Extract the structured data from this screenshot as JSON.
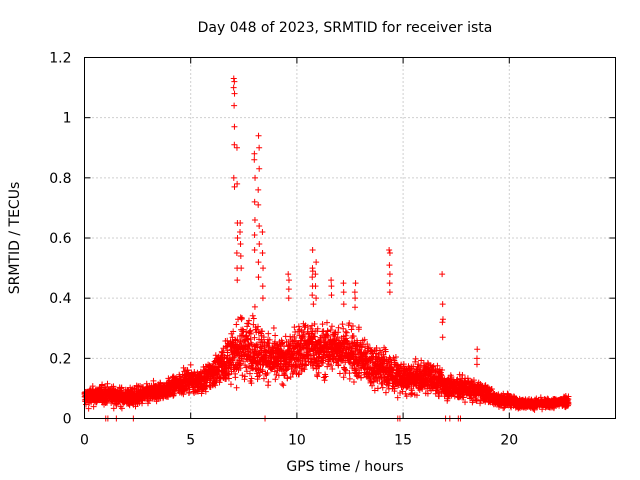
{
  "chart_data": {
    "type": "scatter",
    "title": "Day 048 of 2023, SRMTID for receiver ista",
    "xlabel": "GPS time / hours",
    "ylabel": "SRMTID / TECUs",
    "xlim": [
      0,
      25
    ],
    "ylim": [
      0,
      1.2
    ],
    "xticks": [
      0,
      5,
      10,
      15,
      20
    ],
    "xtick_labels": [
      "0",
      "5",
      "10",
      "15",
      "20"
    ],
    "yticks": [
      0,
      0.2,
      0.4,
      0.6,
      0.8,
      1,
      1.2
    ],
    "ytick_labels": [
      "0",
      "0.2",
      "0.4",
      "0.6",
      "0.8",
      "1",
      "1.2"
    ],
    "grid": true,
    "marker": "+",
    "series": [
      {
        "name": "SRMTID",
        "color": "#ff0000",
        "profile": {
          "x": [
            0,
            1,
            2,
            3,
            4,
            5,
            5.5,
            6,
            6.5,
            7,
            7.5,
            8,
            8.5,
            9,
            9.5,
            10,
            10.5,
            11,
            11.5,
            12,
            12.5,
            13,
            13.5,
            14,
            14.5,
            15,
            15.5,
            16,
            16.5,
            17,
            17.5,
            18,
            18.5,
            19,
            19.5,
            20,
            20.5,
            21,
            21.5,
            22,
            22.8
          ],
          "center": [
            0.07,
            0.08,
            0.07,
            0.08,
            0.1,
            0.13,
            0.12,
            0.15,
            0.18,
            0.21,
            0.24,
            0.23,
            0.21,
            0.19,
            0.2,
            0.22,
            0.24,
            0.22,
            0.23,
            0.24,
            0.22,
            0.2,
            0.18,
            0.17,
            0.15,
            0.13,
            0.13,
            0.14,
            0.13,
            0.11,
            0.1,
            0.1,
            0.09,
            0.08,
            0.06,
            0.06,
            0.05,
            0.05,
            0.05,
            0.05,
            0.06
          ],
          "spread": [
            0.03,
            0.03,
            0.03,
            0.03,
            0.03,
            0.035,
            0.04,
            0.05,
            0.06,
            0.08,
            0.1,
            0.1,
            0.08,
            0.07,
            0.07,
            0.08,
            0.09,
            0.08,
            0.08,
            0.08,
            0.08,
            0.07,
            0.07,
            0.07,
            0.06,
            0.05,
            0.05,
            0.05,
            0.05,
            0.04,
            0.04,
            0.04,
            0.03,
            0.03,
            0.02,
            0.02,
            0.015,
            0.015,
            0.015,
            0.015,
            0.02
          ]
        },
        "peaks": [
          {
            "x": 7.05,
            "values": [
              1.13,
              1.12,
              1.1,
              1.08,
              1.04,
              0.97,
              0.91,
              0.8,
              0.77
            ]
          },
          {
            "x": 7.2,
            "values": [
              0.9,
              0.78,
              0.65,
              0.6,
              0.55,
              0.5,
              0.46
            ]
          },
          {
            "x": 7.35,
            "values": [
              0.65,
              0.62,
              0.58,
              0.54,
              0.5
            ]
          },
          {
            "x": 8.0,
            "values": [
              0.88,
              0.86,
              0.8,
              0.72,
              0.66,
              0.61,
              0.56
            ]
          },
          {
            "x": 8.2,
            "values": [
              0.94,
              0.9,
              0.83,
              0.76,
              0.71,
              0.64,
              0.58,
              0.52,
              0.47
            ]
          },
          {
            "x": 8.4,
            "values": [
              0.62,
              0.55,
              0.5,
              0.44,
              0.4
            ]
          },
          {
            "x": 9.6,
            "values": [
              0.48,
              0.46,
              0.43,
              0.4
            ]
          },
          {
            "x": 10.75,
            "values": [
              0.56,
              0.5,
              0.49,
              0.47,
              0.44,
              0.41,
              0.38
            ]
          },
          {
            "x": 10.9,
            "values": [
              0.52,
              0.48,
              0.44,
              0.4
            ]
          },
          {
            "x": 11.6,
            "values": [
              0.46,
              0.44,
              0.41
            ]
          },
          {
            "x": 12.2,
            "values": [
              0.45,
              0.42,
              0.38
            ]
          },
          {
            "x": 12.75,
            "values": [
              0.45,
              0.42,
              0.4,
              0.37
            ]
          },
          {
            "x": 14.35,
            "values": [
              0.56,
              0.55,
              0.51,
              0.48,
              0.45,
              0.42
            ]
          },
          {
            "x": 16.85,
            "values": [
              0.48,
              0.38,
              0.33,
              0.32,
              0.27
            ]
          },
          {
            "x": 18.5,
            "values": [
              0.23,
              0.2,
              0.18
            ]
          }
        ],
        "zeros": [
          1.0,
          1.1,
          1.5,
          2.3,
          8.5,
          14.75,
          14.85,
          17.0,
          17.2,
          17.6,
          17.7
        ]
      }
    ]
  }
}
